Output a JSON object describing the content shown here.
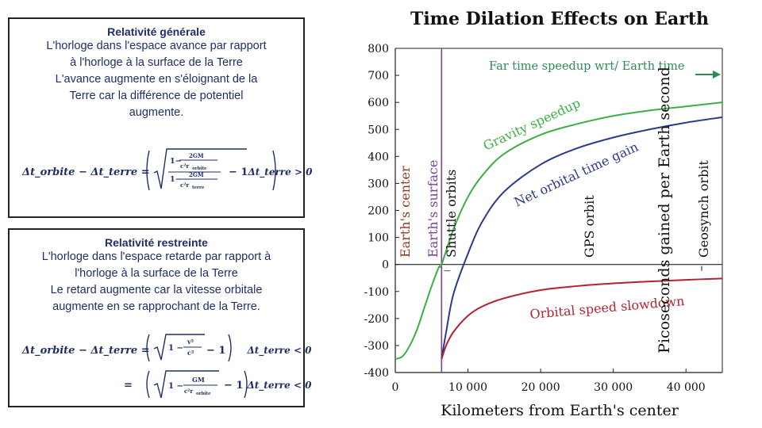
{
  "left_panel": {
    "general_relativity": {
      "heading": "Relativité générale",
      "lines": [
        "L'horloge dans l'espace avance par rapport",
        "à l'horloge à la surface de la Terre",
        "L'avance augmente en s'éloignant de la",
        "Terre car la différence de potentiel",
        "augmente."
      ],
      "formula_lhs": "Δt_orbite − Δt_terre =",
      "formula_rhs": "Δt_terre > 0"
    },
    "special_relativity": {
      "heading": "Relativité restreinte",
      "lines": [
        "L'horloge dans l'espace retarde par rapport à",
        "l'horloge à la surface de la Terre",
        "Le retard augmente car la vitesse orbitale",
        "augmente en se rapprochant de la Terre."
      ],
      "formula1_lhs": "Δt_orbite − Δt_terre =",
      "formula1_rhs": "Δt_terre < 0",
      "formula2_rhs": "Δt_terre < 0"
    }
  },
  "chart_data": {
    "type": "line",
    "title": "Time Dilation Effects on Earth",
    "xlabel": "Kilometers from Earth's center",
    "ylabel": "Picoseconds gained per Earth second",
    "xlim": [
      0,
      45000
    ],
    "ylim": [
      -400,
      800
    ],
    "x_ticks": [
      0,
      10000,
      20000,
      30000,
      40000
    ],
    "x_tick_labels": [
      "0",
      "10 000",
      "20 000",
      "30 000",
      "40 000"
    ],
    "y_ticks": [
      -400,
      -300,
      -200,
      -100,
      0,
      100,
      200,
      300,
      400,
      500,
      600,
      700,
      800
    ],
    "y_tick_labels": [
      "-400",
      "-300",
      "-200",
      "-100",
      "0",
      "100",
      "200",
      "300",
      "400",
      "500",
      "600",
      "700",
      "800"
    ],
    "colors": {
      "gravity": "#3cb043",
      "net": "#2b3a8c",
      "orbital": "#b22234",
      "surface_line": "#7b3f99",
      "annotation_arrow": "#2e8b57",
      "axis": "#222222"
    },
    "series": [
      {
        "name": "Gravity speedup",
        "x": [
          0,
          1000,
          2000,
          3000,
          4000,
          5000,
          6000,
          6371,
          8000,
          10000,
          12000,
          15000,
          20000,
          25000,
          30000,
          35000,
          40000,
          45000
        ],
        "values": [
          -350,
          -340,
          -300,
          -240,
          -160,
          -80,
          -10,
          0,
          130,
          250,
          330,
          410,
          480,
          520,
          550,
          570,
          585,
          600
        ]
      },
      {
        "name": "Net orbital time gain",
        "x": [
          6371,
          7000,
          8000,
          10000,
          12000,
          15000,
          20000,
          25000,
          30000,
          35000,
          40000,
          45000
        ],
        "values": [
          -350,
          -250,
          -110,
          40,
          160,
          270,
          370,
          430,
          470,
          500,
          525,
          545
        ]
      },
      {
        "name": "Orbital speed slowdown",
        "x": [
          6371,
          7000,
          8000,
          10000,
          12000,
          15000,
          20000,
          25000,
          30000,
          35000,
          40000,
          45000
        ],
        "values": [
          -350,
          -300,
          -250,
          -190,
          -155,
          -125,
          -95,
          -80,
          -70,
          -63,
          -57,
          -52
        ]
      }
    ],
    "annotations": {
      "far_time": "Far time speedup wrt/ Earth time",
      "earths_center": "Earth's center",
      "earths_surface": "Earth's surface",
      "shuttle": "Shuttle orbits",
      "gps": "GPS orbit",
      "geosynch": "Geosynch orbit"
    },
    "markers_x": {
      "earths_surface": 6371,
      "shuttle": 6700,
      "geosynch": 42164
    },
    "grid": false
  }
}
